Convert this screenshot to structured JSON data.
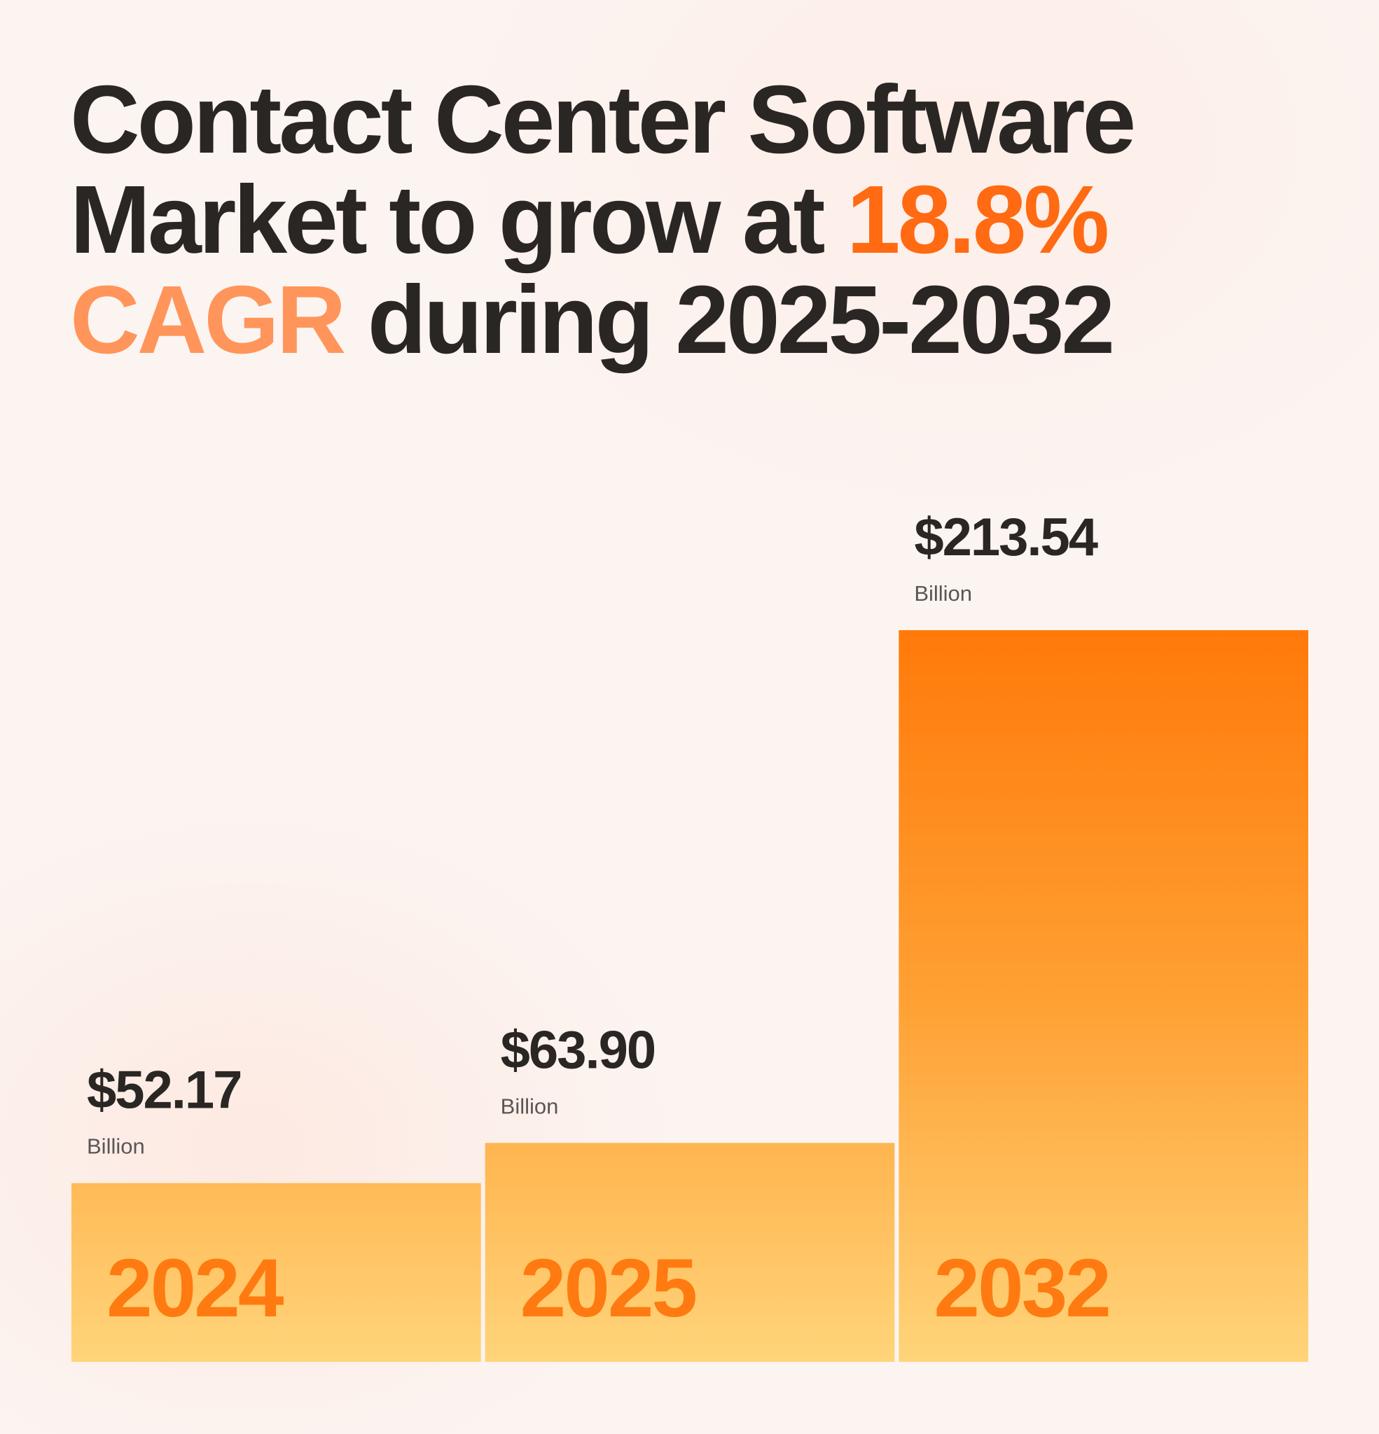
{
  "title": {
    "line1": "Contact Center Software",
    "line2_prefix": "Market to grow at ",
    "line2_highlight": "18.8%",
    "line3_highlight": "CAGR",
    "line3_suffix": " during 2025-2032"
  },
  "colors": {
    "text_dark": "#2a2624",
    "accent_orange": "#ff6a12",
    "accent_light_orange": "#ff955a",
    "bar_top": "#ff7a0a",
    "bar_bottom": "#ffd47a",
    "category_label": "#ff7a10"
  },
  "chart_data": {
    "type": "bar",
    "categories": [
      "2024",
      "2025",
      "2032"
    ],
    "values": [
      52.17,
      63.9,
      213.54
    ],
    "value_labels": [
      "$52.17",
      "$63.90",
      "$213.54"
    ],
    "unit_label": "Billion",
    "ylim": [
      0,
      213.54
    ],
    "title": "",
    "xlabel": "",
    "ylabel": "",
    "grid": false
  }
}
